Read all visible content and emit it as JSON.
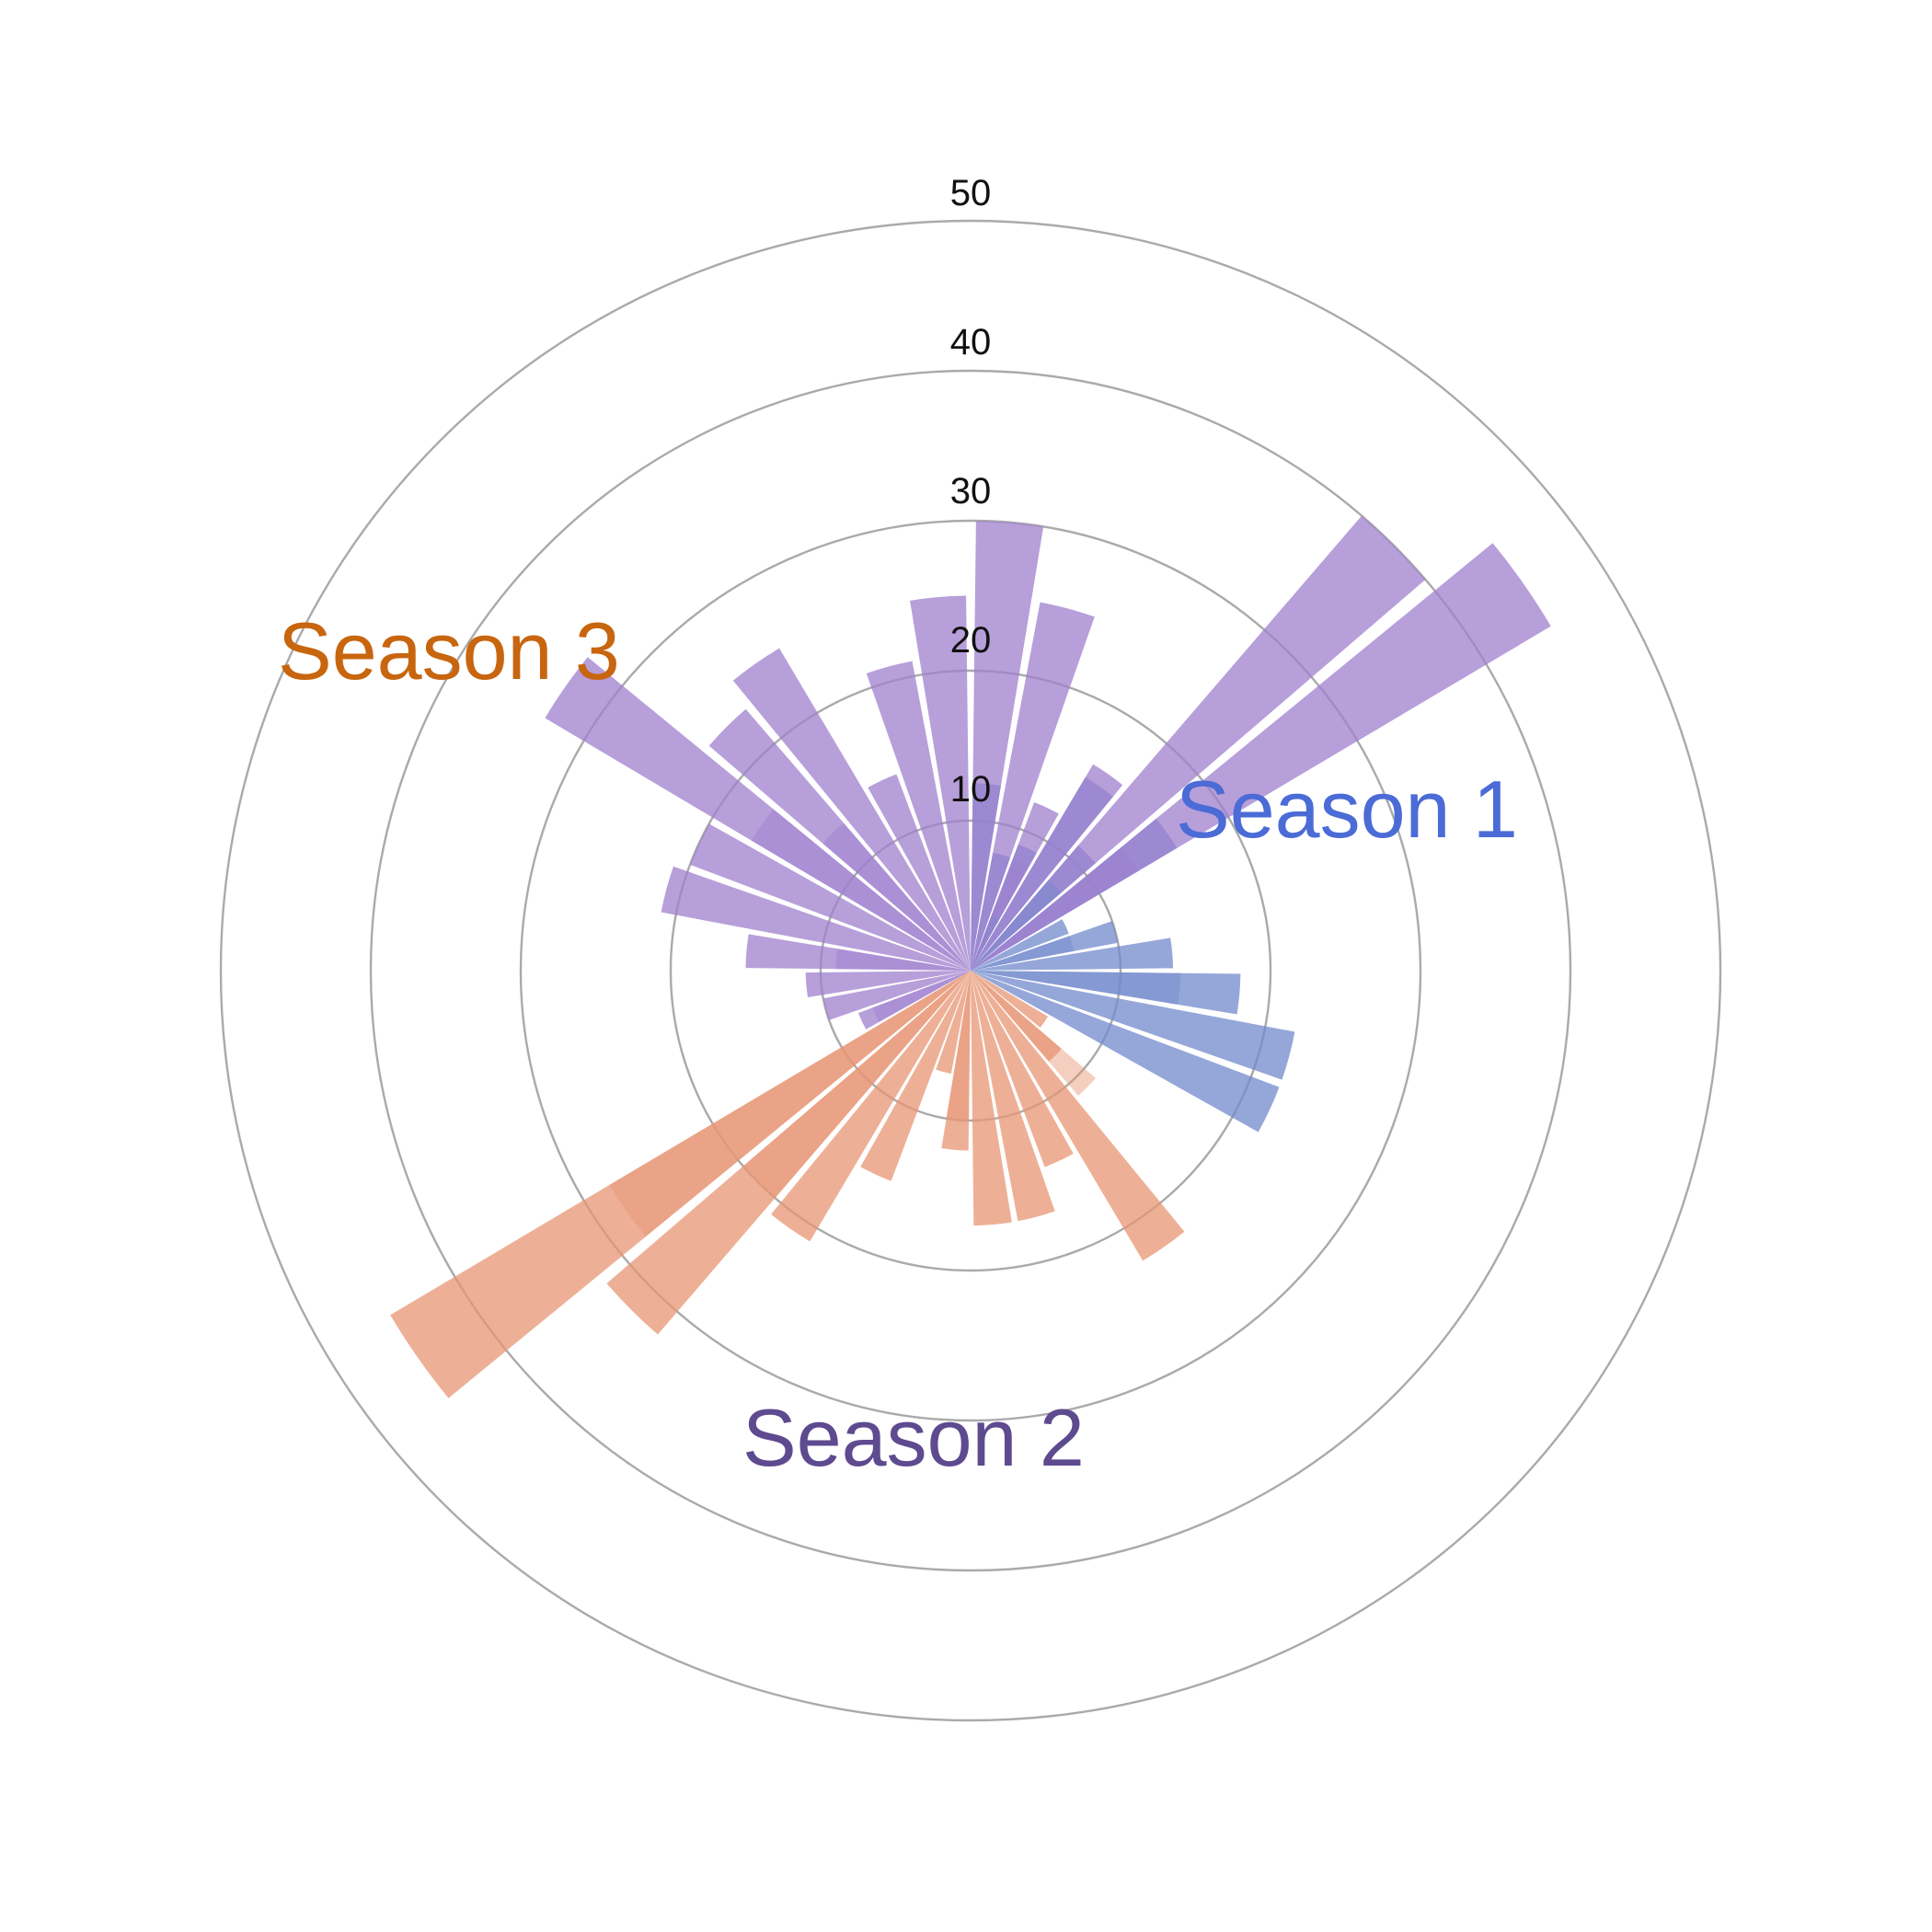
{
  "chart_data": {
    "type": "bar",
    "subtype": "polar-bar",
    "title": "",
    "radial_axis": {
      "range": [
        0,
        50
      ],
      "ticks": [
        10,
        20,
        30,
        40,
        50
      ],
      "tick_labels": [
        "10",
        "20",
        "30",
        "40",
        "50"
      ],
      "grid": true
    },
    "angular_axis": {
      "start": "top",
      "direction": "clockwise",
      "categories": 36
    },
    "series": [
      {
        "name": "Season 1",
        "label_color": "#4b6bd6",
        "bar_color": "#7189cc",
        "values": [
          12.5,
          8,
          9,
          15,
          11,
          16,
          7,
          10,
          13.5,
          18,
          22,
          22
        ]
      },
      {
        "name": "Season 2",
        "label_color": "#5e4a8f",
        "bar_color": "#e79573",
        "values": [
          6,
          8,
          22.5,
          14,
          17,
          17,
          12,
          7,
          15,
          21,
          32,
          45
        ]
      },
      {
        "name": "Season 3",
        "label_color": "#c8650f",
        "bar_color": "#9f7fce",
        "values": [
          8,
          10,
          11,
          15,
          21,
          20,
          33,
          23,
          25,
          14,
          21,
          25,
          30,
          25,
          12,
          16,
          40,
          45
        ]
      }
    ],
    "legend": "inline labels",
    "series_order_note": "values run clockwise starting just after 12 o'clock"
  },
  "chart_data_layers": {
    "overlay_inner": [
      {
        "series": 0,
        "index": 2,
        "value": 4
      },
      {
        "series": 0,
        "index": 4,
        "value": 8
      },
      {
        "series": 0,
        "index": 7,
        "value": 7
      },
      {
        "series": 0,
        "index": 9,
        "value": 14
      },
      {
        "series": 1,
        "index": 1,
        "value": 11
      },
      {
        "series": 1,
        "index": 6,
        "value": 10
      },
      {
        "series": 1,
        "index": 10,
        "value": 20
      },
      {
        "series": 1,
        "index": 11,
        "value": 28
      },
      {
        "series": 2,
        "index": 0,
        "value": 7
      },
      {
        "series": 2,
        "index": 3,
        "value": 9
      },
      {
        "series": 2,
        "index": 6,
        "value": 17
      },
      {
        "series": 2,
        "index": 7,
        "value": 13
      },
      {
        "series": 2,
        "index": 14,
        "value": 8
      },
      {
        "series": 2,
        "index": 17,
        "value": 13
      }
    ]
  },
  "labels": {
    "season1": "Season 1",
    "season2": "Season 2",
    "season3": "Season 3"
  },
  "ticks": {
    "t10": "10",
    "t20": "20",
    "t30": "30",
    "t40": "40",
    "t50": "50"
  }
}
